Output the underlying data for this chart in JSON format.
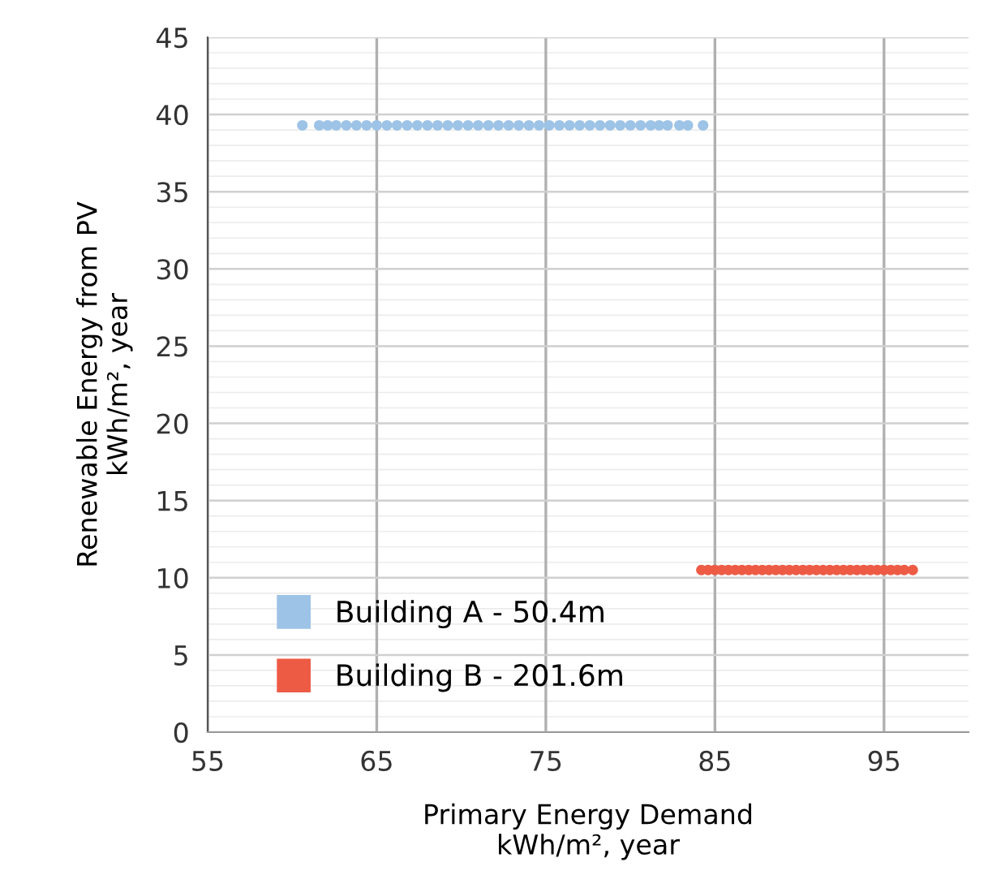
{
  "chart_data": {
    "type": "scatter",
    "xlabel": "Primary Energy Demand\nkWh/m², year",
    "ylabel": "Renewable Energy from PV\nkWh/m², year",
    "xlim": [
      55,
      100
    ],
    "ylim": [
      0,
      45
    ],
    "xticks": [
      55,
      65,
      75,
      85,
      95
    ],
    "yticks": [
      0,
      5,
      10,
      15,
      20,
      25,
      30,
      35,
      40,
      45
    ],
    "grid": true,
    "legend": "bottom left",
    "marker": "circle",
    "series": [
      {
        "name": "Building A - 50.4m",
        "color": "#9dc3e6",
        "x": [
          60.6,
          61.6,
          62.1,
          62.6,
          63.2,
          63.8,
          64.4,
          65,
          65.6,
          66.2,
          66.8,
          67.4,
          68,
          68.6,
          69.2,
          69.8,
          70.4,
          71,
          71.6,
          72.2,
          72.8,
          73.4,
          74,
          74.6,
          75.2,
          75.8,
          76.4,
          77,
          77.6,
          78.2,
          78.8,
          79.4,
          80,
          80.6,
          81.2,
          81.7,
          82.2,
          82.9,
          83.4,
          84.3
        ],
        "values": [
          39.3,
          39.3,
          39.3,
          39.3,
          39.3,
          39.3,
          39.3,
          39.3,
          39.3,
          39.3,
          39.3,
          39.3,
          39.3,
          39.3,
          39.3,
          39.3,
          39.3,
          39.3,
          39.3,
          39.3,
          39.3,
          39.3,
          39.3,
          39.3,
          39.3,
          39.3,
          39.3,
          39.3,
          39.3,
          39.3,
          39.3,
          39.3,
          39.3,
          39.3,
          39.3,
          39.3,
          39.3,
          39.3,
          39.3,
          39.3
        ]
      },
      {
        "name": "Building B - 201.6m",
        "color": "#ed5b45",
        "x": [
          84.2,
          84.6,
          85,
          85.4,
          85.8,
          86.2,
          86.6,
          87,
          87.4,
          87.8,
          88.2,
          88.6,
          89,
          89.4,
          89.8,
          90.2,
          90.6,
          91,
          91.4,
          91.8,
          92.2,
          92.6,
          93,
          93.4,
          93.8,
          94.2,
          94.6,
          95,
          95.4,
          95.8,
          96.2,
          96.7
        ],
        "values": [
          10.5,
          10.5,
          10.5,
          10.5,
          10.5,
          10.5,
          10.5,
          10.5,
          10.5,
          10.5,
          10.5,
          10.5,
          10.5,
          10.5,
          10.5,
          10.5,
          10.5,
          10.5,
          10.5,
          10.5,
          10.5,
          10.5,
          10.5,
          10.5,
          10.5,
          10.5,
          10.5,
          10.5,
          10.5,
          10.5,
          10.5,
          10.5
        ]
      }
    ]
  }
}
